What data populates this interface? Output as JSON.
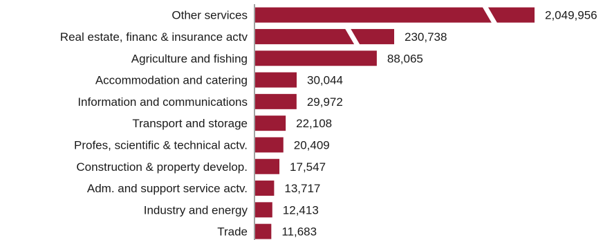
{
  "chart_data": {
    "type": "bar",
    "orientation": "horizontal",
    "axis_break": true,
    "bar_color": "#9b1b35",
    "categories": [
      "Other services",
      "Real estate, financ & insurance actv",
      "Agriculture and fishing",
      "Accommodation and catering",
      "Information and communications",
      "Transport and storage",
      "Profes, scientific & technical actv.",
      "Construction & property develop.",
      "Adm. and support service actv.",
      "Industry and energy",
      "Trade"
    ],
    "values": [
      2049956,
      230738,
      88065,
      30044,
      29972,
      22108,
      20409,
      17547,
      13717,
      12413,
      11683
    ],
    "value_labels": [
      "2,049,956",
      "230,738",
      "88,065",
      "30,044",
      "29,972",
      "22,108",
      "20,409",
      "17,547",
      "13,717",
      "12,413",
      "11,683"
    ],
    "grid": false,
    "legend": "none"
  }
}
